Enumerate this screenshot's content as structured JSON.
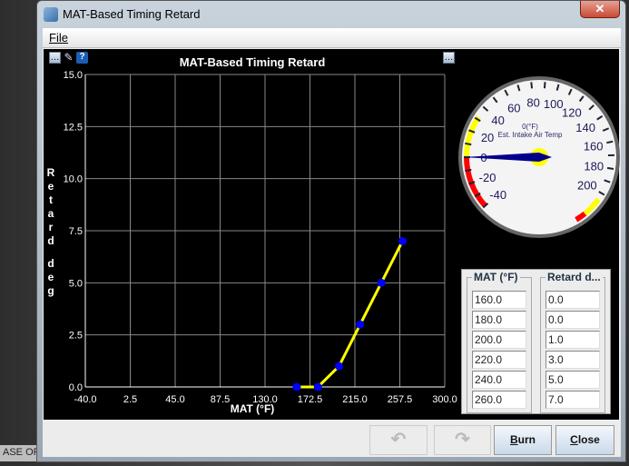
{
  "window": {
    "title": "MAT-Based Timing Retard",
    "close_glyph": "✕"
  },
  "background": {
    "taskbar_fragment": "ASE OF"
  },
  "menu": {
    "file": "File"
  },
  "chart_data": {
    "type": "line",
    "title": "MAT-Based Timing Retard",
    "xlabel": "MAT (°F)",
    "ylabel": "Retard deg",
    "xlim": [
      -40,
      300
    ],
    "ylim": [
      0,
      15
    ],
    "xticks": [
      "-40.0",
      "2.5",
      "45.0",
      "87.5",
      "130.0",
      "172.5",
      "215.0",
      "257.5",
      "300.0"
    ],
    "yticks": [
      "0.0",
      "2.5",
      "5.0",
      "7.5",
      "10.0",
      "12.5",
      "15.0"
    ],
    "grid": true,
    "series": [
      {
        "x": [
          160,
          180,
          200,
          220,
          240,
          260
        ],
        "y": [
          0,
          0,
          1,
          3,
          5,
          7
        ],
        "line_color": "#ffff00",
        "marker_color": "#0000ff"
      }
    ]
  },
  "gauge": {
    "value_label": "0(°F)",
    "title": "Est. Intake Air Temp",
    "value": 0,
    "min": -40,
    "max": 200,
    "labels": [
      "-40",
      "-20",
      "0",
      "20",
      "40",
      "60",
      "80",
      "100",
      "120",
      "140",
      "160",
      "180",
      "200"
    ],
    "warn_color": "#ffff00",
    "danger_color": "#ff0000",
    "needle_color": "#00008b"
  },
  "table": {
    "headers": [
      "MAT (°F)",
      "Retard d..."
    ],
    "mat": [
      "160.0",
      "180.0",
      "200.0",
      "220.0",
      "240.0",
      "260.0"
    ],
    "retard": [
      "0.0",
      "0.0",
      "1.0",
      "3.0",
      "5.0",
      "7.0"
    ]
  },
  "buttons": {
    "undo": "↶",
    "redo": "↷",
    "burn_u": "B",
    "burn_rest": "urn",
    "close_u": "C",
    "close_rest": "lose"
  }
}
